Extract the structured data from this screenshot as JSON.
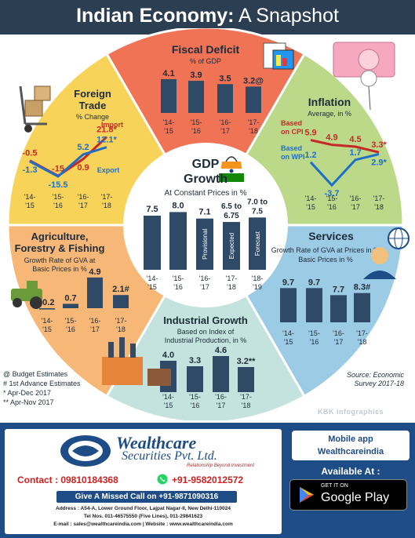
{
  "header": {
    "title_bold": "Indian Economy:",
    "title_thin": " A Snapshot"
  },
  "years": [
    "'14-'15",
    "'15-'16",
    "'16-'17",
    "'17-'18",
    "'18-'19"
  ],
  "center": {
    "title": "GDP Growth",
    "subtitle": "At Constant Prices in %",
    "values": [
      "7.5",
      "8.0",
      "7.1",
      "6.5 to 6.75",
      "7.0 to 7.5"
    ],
    "bar_notes": [
      "",
      "",
      "Provisional",
      "Expected",
      "Forecast"
    ],
    "years": [
      "'14-",
      "'15",
      "'15-",
      "'16",
      "'16-",
      "'17",
      "'17-",
      "'18",
      "'18-",
      "'19"
    ]
  },
  "fiscal": {
    "title": "Fiscal Deficit",
    "subtitle": "% of GDP",
    "values": [
      "4.1",
      "3.9",
      "3.5",
      "3.2@"
    ]
  },
  "inflation": {
    "title": "Inflation",
    "subtitle": "Average, in %",
    "cpi_label": "Based on CPI",
    "wpi_label": "Based on WPI",
    "cpi_values": [
      "5.9",
      "4.9",
      "4.5",
      "3.3*"
    ],
    "wpi_values": [
      "1.2",
      "-3.7",
      "1.7",
      "2.9*"
    ]
  },
  "services": {
    "title": "Services",
    "subtitle": "Growth Rate of GVA at Basic Prices in %",
    "values": [
      "9.7",
      "9.7",
      "7.7",
      "8.3#"
    ]
  },
  "industrial": {
    "title": "Industrial Growth",
    "subtitle": "Based on Index of Industrial Production, in %",
    "values": [
      "4.0",
      "3.3",
      "4.6",
      "3.2**"
    ]
  },
  "agriculture": {
    "title": "Agriculture, Forestry & Fishing",
    "subtitle": "Growth Rate of GVA at Basic Prices in %",
    "values": [
      "-0.2",
      "0.7",
      "4.9",
      "2.1#"
    ]
  },
  "trade": {
    "title": "Foreign Trade",
    "subtitle": "% Change",
    "import_label": "Import",
    "export_label": "Export",
    "import_values": [
      "-0.5",
      "-15",
      "0.9",
      "21.8*"
    ],
    "export_values": [
      "-1.3",
      "-15.5",
      "5.2",
      "12.1*"
    ]
  },
  "notes": [
    "@ Budget Estimates",
    "# 1st Advance Estimates",
    "* Apr-Dec 2017",
    "** Apr-Nov 2017"
  ],
  "source": "Source: Economic Survey 2017-18",
  "watermark": "KBK infographics",
  "ad": {
    "brand": "Wealthcare",
    "brand_sub": "Securities Pvt. Ltd.",
    "tagline": "Relationship Beyond Investment",
    "contact": "Contact : 09810184368",
    "whatsapp": "+91-9582012572",
    "missed_call": "Give A Missed Call on +91-9871090316",
    "address": "Address : A54-A, Lower Ground Floor, Lajpat Nagar-II, New Delhi-110024",
    "tel": "Tel Nos. 011-46575550 (Five Lines), 011-29841623",
    "email": "E-mail : sales@wealthcareindia.com   |   Website : www.wealthcareindia.com",
    "mobile_app": "Mobile app",
    "app_name": "Wealthcareindia",
    "available": "Available At :",
    "get_it_on": "GET IT ON",
    "store": "Google Play"
  },
  "colors": {
    "header": "#2b3e52",
    "fiscal": "#f07356",
    "inflation": "#bcd98a",
    "services": "#9ccbe5",
    "industrial": "#c5e3de",
    "agriculture": "#f7b877",
    "trade": "#f8d35a",
    "bars": "#2e4a67",
    "footer": "#1d4c86"
  },
  "chart_data": [
    {
      "type": "bar",
      "title": "GDP Growth",
      "subtitle": "At Constant Prices in %",
      "categories": [
        "'14-'15",
        "'15-'16",
        "'16-'17",
        "'17-'18",
        "'18-'19"
      ],
      "values": [
        7.5,
        8.0,
        7.1,
        6.625,
        7.25
      ]
    },
    {
      "type": "bar",
      "title": "Fiscal Deficit",
      "subtitle": "% of GDP",
      "categories": [
        "'14-'15",
        "'15-'16",
        "'16-'17",
        "'17-'18"
      ],
      "values": [
        4.1,
        3.9,
        3.5,
        3.2
      ]
    },
    {
      "type": "line",
      "title": "Inflation",
      "subtitle": "Average, in %",
      "categories": [
        "'14-'15",
        "'15-'16",
        "'16-'17",
        "'17-'18"
      ],
      "series": [
        {
          "name": "Based on CPI",
          "values": [
            5.9,
            4.9,
            4.5,
            3.3
          ]
        },
        {
          "name": "Based on WPI",
          "values": [
            1.2,
            -3.7,
            1.7,
            2.9
          ]
        }
      ]
    },
    {
      "type": "bar",
      "title": "Services",
      "subtitle": "Growth Rate of GVA at Basic Prices in %",
      "categories": [
        "'14-'15",
        "'15-'16",
        "'16-'17",
        "'17-'18"
      ],
      "values": [
        9.7,
        9.7,
        7.7,
        8.3
      ]
    },
    {
      "type": "bar",
      "title": "Industrial Growth",
      "subtitle": "Based on Index of Industrial Production, in %",
      "categories": [
        "'14-'15",
        "'15-'16",
        "'16-'17",
        "'17-'18"
      ],
      "values": [
        4.0,
        3.3,
        4.6,
        3.2
      ]
    },
    {
      "type": "bar",
      "title": "Agriculture, Forestry & Fishing",
      "subtitle": "Growth Rate of GVA at Basic Prices in %",
      "categories": [
        "'14-'15",
        "'15-'16",
        "'16-'17",
        "'17-'18"
      ],
      "values": [
        -0.2,
        0.7,
        4.9,
        2.1
      ]
    },
    {
      "type": "line",
      "title": "Foreign Trade",
      "subtitle": "% Change",
      "categories": [
        "'14-'15",
        "'15-'16",
        "'16-'17",
        "'17-'18"
      ],
      "series": [
        {
          "name": "Import",
          "values": [
            -0.5,
            -15,
            0.9,
            21.8
          ]
        },
        {
          "name": "Export",
          "values": [
            -1.3,
            -15.5,
            5.2,
            12.1
          ]
        }
      ]
    }
  ]
}
